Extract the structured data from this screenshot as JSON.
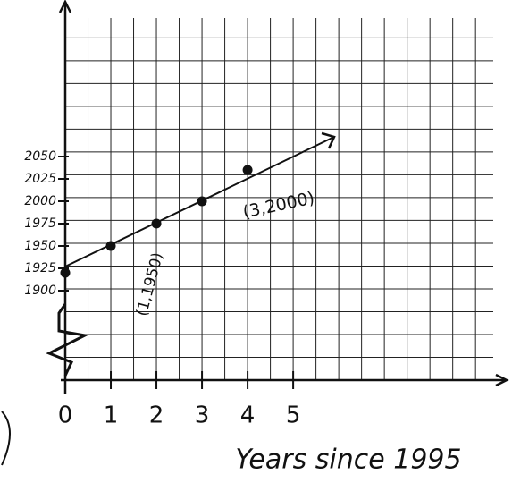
{
  "chart_data": {
    "type": "scatter",
    "x_label": "Years since 1995",
    "annotations": [
      "(1,1950)",
      "(3,2000)"
    ],
    "series": [
      {
        "color": "#111111",
        "x": [
          0,
          1,
          2,
          3,
          4
        ],
        "values": [
          1920,
          1950,
          1975,
          2000,
          2035
        ]
      },
      {
        "color": "#111111",
        "x": [
          0,
          5.9
        ],
        "values": [
          1927,
          2072
        ],
        "style": "line"
      }
    ],
    "xlim": [
      0,
      9.8
    ],
    "ylim": [
      1800,
      2225
    ],
    "xticks": [
      0,
      1,
      2,
      3,
      4,
      5
    ],
    "yticks": [
      1900,
      1925,
      1950,
      1975,
      2000,
      2025,
      2050
    ],
    "grid": true
  }
}
